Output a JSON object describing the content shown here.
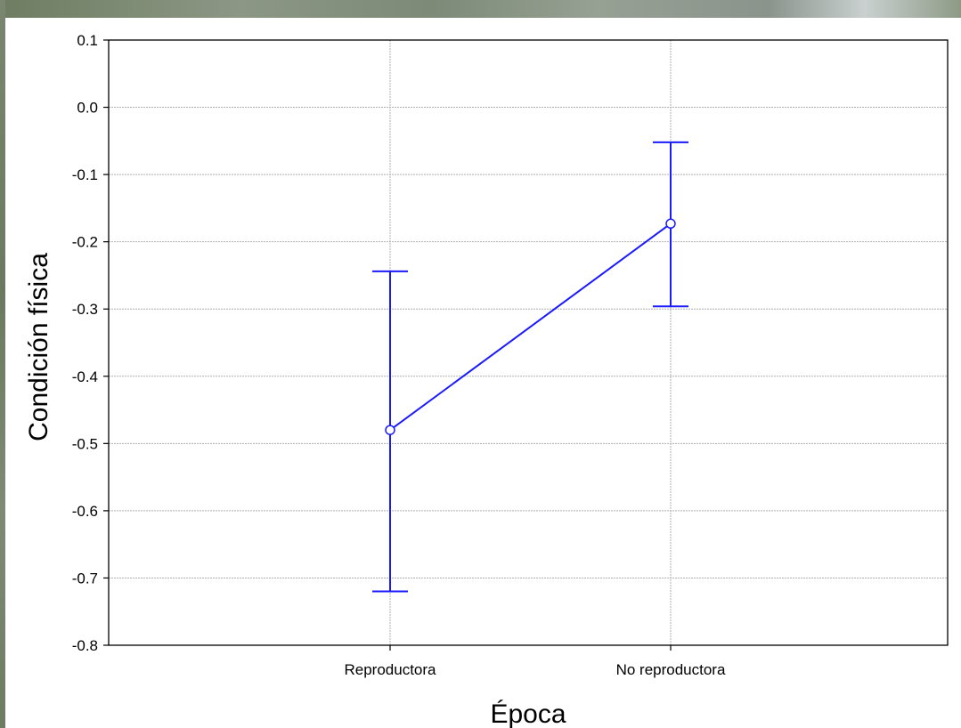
{
  "chart_data": {
    "type": "line",
    "xlabel": "Época",
    "ylabel": "Condición física",
    "categories": [
      "Reproductora",
      "No reproductora"
    ],
    "ylim": [
      -0.8,
      0.1
    ],
    "yticks": [
      "0.1",
      "0.0",
      "-0.1",
      "-0.2",
      "-0.3",
      "-0.4",
      "-0.5",
      "-0.6",
      "-0.7",
      "-0.8"
    ],
    "ytick_values": [
      0.1,
      0.0,
      -0.1,
      -0.2,
      -0.3,
      -0.4,
      -0.5,
      -0.6,
      -0.7,
      -0.8
    ],
    "series": [
      {
        "values": [
          -0.48,
          -0.173
        ],
        "error_low": [
          -0.72,
          -0.296
        ],
        "error_high": [
          -0.244,
          -0.052
        ]
      }
    ],
    "grid": true,
    "colors": {
      "series": "#1a1aff",
      "grid": "#b0b0b0",
      "axes": "#000000"
    }
  }
}
